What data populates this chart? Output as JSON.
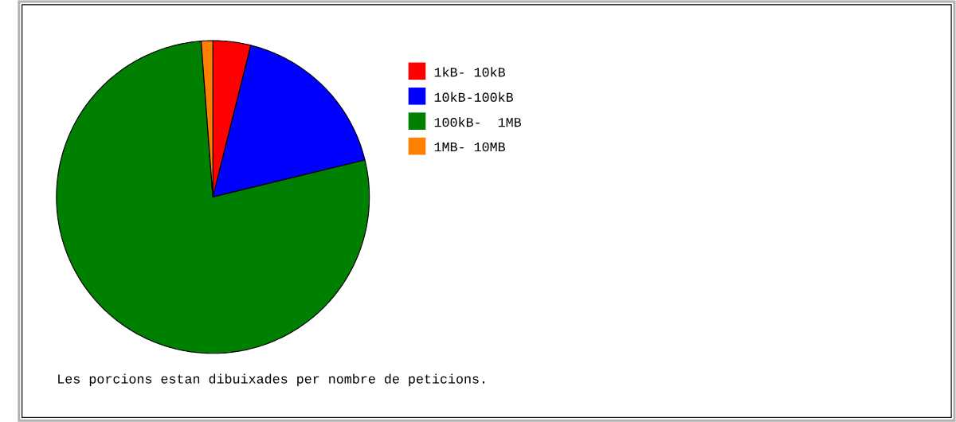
{
  "chart_data": {
    "type": "pie",
    "categories": [
      "1kB- 10kB",
      "10kB-100kB",
      "100kB-  1MB",
      "1MB- 10MB"
    ],
    "values": [
      3.9,
      17.3,
      77.6,
      1.2
    ],
    "colors": [
      "#ff0000",
      "#0000ff",
      "#008000",
      "#ff8000"
    ],
    "legend": "right",
    "annotations": [
      "Les porcions estan dibuixades per nombre de peticions."
    ]
  }
}
